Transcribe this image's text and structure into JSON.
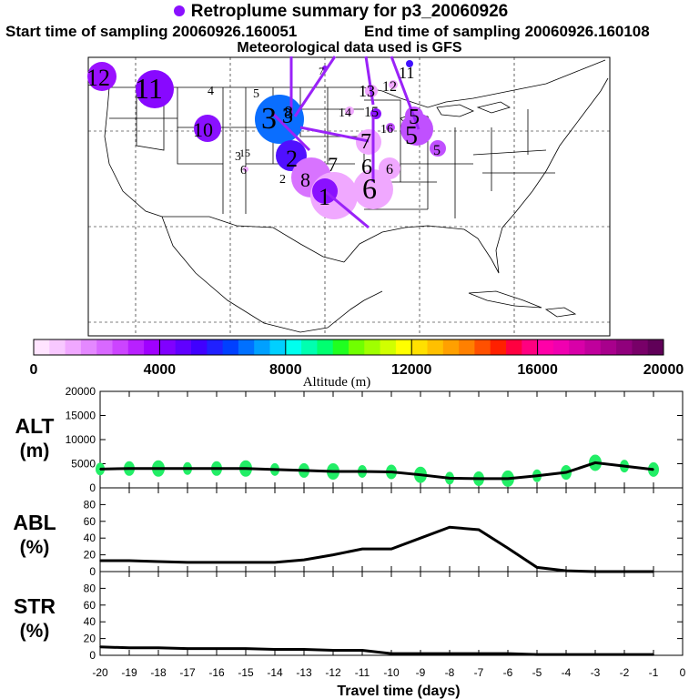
{
  "header": {
    "title": "Retroplume summary for p3_20060926",
    "start_time": "Start time of sampling 20060926.160051",
    "end_time": "End time of sampling 20060926.160108",
    "met_data": "Meteorological data used is GFS"
  },
  "map": {
    "plume_labels": [
      "12",
      "11",
      "10",
      "4",
      "5",
      "3",
      "3",
      "8",
      "2",
      "2",
      "3",
      "6",
      "8",
      "1",
      "7",
      "7",
      "6",
      "6",
      "6",
      "14",
      "13",
      "12",
      "11",
      "15",
      "16",
      "5",
      "5",
      "5",
      "7",
      "15"
    ]
  },
  "colorbar": {
    "label": "Altitude (m)",
    "ticks": [
      "0",
      "4000",
      "8000",
      "12000",
      "16000",
      "20000"
    ],
    "colors": [
      "#ffe4ff",
      "#f8c8ff",
      "#f0a8ff",
      "#e488ff",
      "#d868ff",
      "#cc44ff",
      "#b820ff",
      "#a000ff",
      "#8000ff",
      "#6000ff",
      "#4000ff",
      "#2020ff",
      "#0040ff",
      "#0070ff",
      "#00a0ff",
      "#00d0ff",
      "#00ffee",
      "#00ffb0",
      "#00ff70",
      "#20ff20",
      "#70ff00",
      "#a0ff00",
      "#d0ff00",
      "#ffff00",
      "#ffe000",
      "#ffc000",
      "#ffa000",
      "#ff8000",
      "#ff5000",
      "#ff2000",
      "#ff0040",
      "#ff0080",
      "#ff00a8",
      "#f000b0",
      "#d800a8",
      "#c0009c",
      "#a8008c",
      "#90007c",
      "#780068",
      "#600058"
    ]
  },
  "chart_data": [
    {
      "type": "line",
      "name": "ALT",
      "ylabel": "ALT",
      "yunit": "(m)",
      "ylim": [
        0,
        20000
      ],
      "yticks": [
        0,
        5000,
        10000,
        15000,
        20000
      ],
      "x": [
        -20,
        -19,
        -18,
        -17,
        -16,
        -15,
        -14,
        -13,
        -12,
        -11,
        -10,
        -9,
        -8,
        -7,
        -6,
        -5,
        -4,
        -3,
        -2,
        -1
      ],
      "values": [
        3900,
        4000,
        4000,
        4000,
        4000,
        4000,
        3800,
        3600,
        3400,
        3400,
        3300,
        2700,
        2000,
        1900,
        1900,
        2500,
        3200,
        5200,
        4500,
        3800
      ]
    },
    {
      "type": "line",
      "name": "ABL",
      "ylabel": "ABL",
      "yunit": "(%)",
      "ylim": [
        0,
        100
      ],
      "yticks": [
        0,
        20,
        40,
        60,
        80
      ],
      "x": [
        -20,
        -19,
        -18,
        -17,
        -16,
        -15,
        -14,
        -13,
        -12,
        -11,
        -10,
        -9,
        -8,
        -7,
        -6,
        -5,
        -4,
        -3,
        -2,
        -1
      ],
      "values": [
        13,
        13,
        12,
        11,
        11,
        11,
        11,
        14,
        20,
        27,
        27,
        40,
        53,
        50,
        28,
        5,
        1,
        0,
        0,
        0
      ]
    },
    {
      "type": "line",
      "name": "STR",
      "ylabel": "STR",
      "yunit": "(%)",
      "ylim": [
        0,
        100
      ],
      "yticks": [
        0,
        20,
        40,
        60,
        80
      ],
      "x": [
        -20,
        -19,
        -18,
        -17,
        -16,
        -15,
        -14,
        -13,
        -12,
        -11,
        -10,
        -9,
        -8,
        -7,
        -6,
        -5,
        -4,
        -3,
        -2,
        -1
      ],
      "values": [
        10,
        9,
        9,
        8,
        8,
        8,
        7,
        7,
        6,
        6,
        2,
        2,
        2,
        2,
        2,
        1,
        1,
        1,
        1,
        1
      ]
    }
  ],
  "xaxis": {
    "label": "Travel time (days)",
    "ticks": [
      "-20",
      "-19",
      "-18",
      "-17",
      "-16",
      "-15",
      "-14",
      "-13",
      "-12",
      "-11",
      "-10",
      "-9",
      "-8",
      "-7",
      "-6",
      "-5",
      "-4",
      "-3",
      "-2",
      "-1",
      "0"
    ]
  }
}
